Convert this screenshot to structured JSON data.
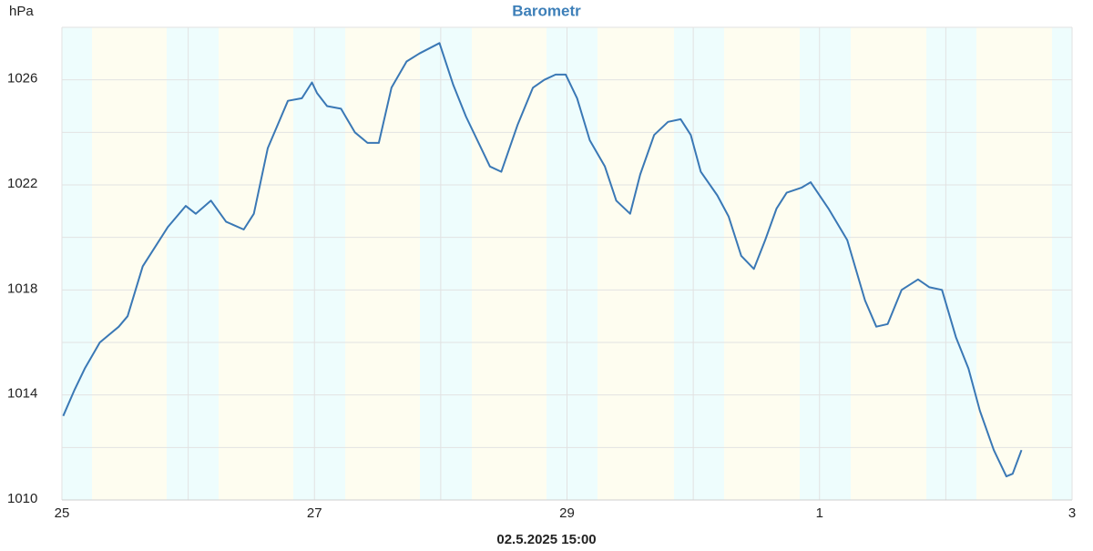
{
  "chart_data": {
    "type": "line",
    "title": "Barometr",
    "ylabel": "hPa",
    "xlabel": "02.5.2025 15:00",
    "xlim": [
      0,
      8
    ],
    "xticks": [
      {
        "value": 0,
        "label": "25"
      },
      {
        "value": 2,
        "label": "27"
      },
      {
        "value": 4,
        "label": "29"
      },
      {
        "value": 6,
        "label": "1"
      },
      {
        "value": 8,
        "label": "3"
      }
    ],
    "xminor": [
      1,
      3,
      5,
      7
    ],
    "ylim": [
      1010,
      1028
    ],
    "yticks": [
      1010,
      1014,
      1018,
      1022,
      1026
    ],
    "yminor": [
      1012,
      1016,
      1020,
      1024,
      1028
    ],
    "grid": true,
    "series": [
      {
        "name": "Barometr",
        "color": "#3a78b5",
        "x": [
          0.01,
          0.1,
          0.18,
          0.3,
          0.45,
          0.52,
          0.64,
          0.84,
          0.98,
          1.06,
          1.18,
          1.3,
          1.44,
          1.52,
          1.63,
          1.79,
          1.9,
          1.98,
          2.02,
          2.1,
          2.21,
          2.32,
          2.42,
          2.51,
          2.61,
          2.73,
          2.83,
          2.99,
          3.1,
          3.2,
          3.39,
          3.48,
          3.61,
          3.73,
          3.82,
          3.91,
          3.99,
          4.08,
          4.18,
          4.3,
          4.39,
          4.5,
          4.58,
          4.69,
          4.8,
          4.9,
          4.98,
          5.06,
          5.19,
          5.28,
          5.38,
          5.48,
          5.57,
          5.66,
          5.74,
          5.86,
          5.93,
          6.07,
          6.22,
          6.36,
          6.45,
          6.54,
          6.65,
          6.78,
          6.87,
          6.97,
          7.08,
          7.18,
          7.27,
          7.38,
          7.48,
          7.53,
          7.6
        ],
        "values": [
          1013.2,
          1014.2,
          1015.0,
          1016.0,
          1016.6,
          1017.0,
          1018.9,
          1020.4,
          1021.2,
          1020.9,
          1021.4,
          1020.6,
          1020.3,
          1020.9,
          1023.4,
          1025.2,
          1025.3,
          1025.9,
          1025.5,
          1025.0,
          1024.9,
          1024.0,
          1023.6,
          1023.6,
          1025.7,
          1026.7,
          1027.0,
          1027.4,
          1025.8,
          1024.6,
          1022.7,
          1022.5,
          1024.3,
          1025.7,
          1026.0,
          1026.2,
          1026.2,
          1025.3,
          1023.7,
          1022.7,
          1021.4,
          1020.9,
          1022.4,
          1023.9,
          1024.4,
          1024.5,
          1023.9,
          1022.5,
          1021.6,
          1020.8,
          1019.3,
          1018.8,
          1019.9,
          1021.1,
          1021.7,
          1021.9,
          1022.1,
          1021.1,
          1019.9,
          1017.6,
          1016.6,
          1016.7,
          1018.0,
          1018.4,
          1018.1,
          1018.0,
          1016.2,
          1015.0,
          1013.4,
          1011.9,
          1010.9,
          1011.0,
          1011.9
        ]
      }
    ]
  }
}
